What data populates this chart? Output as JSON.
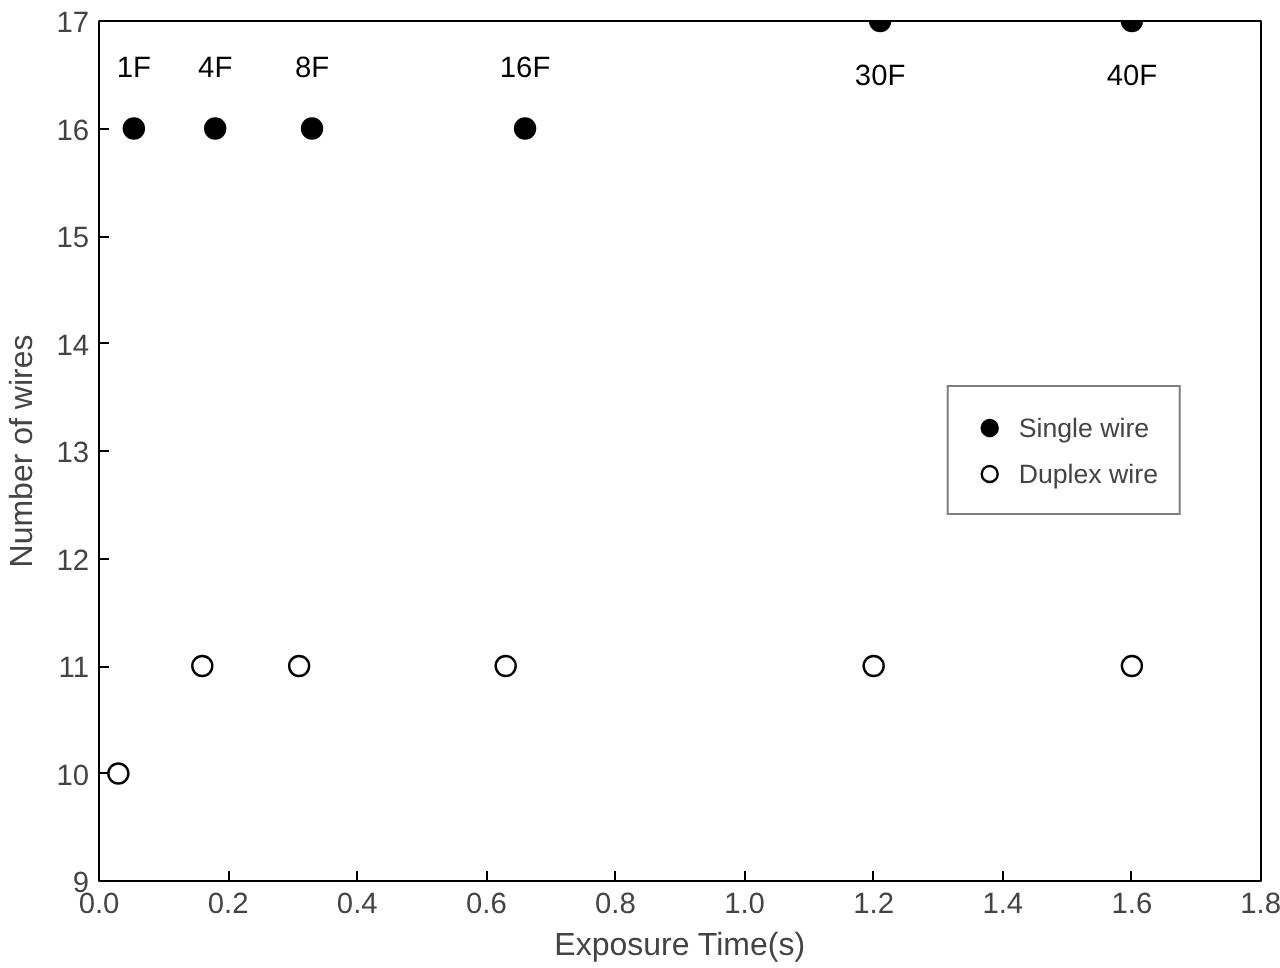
{
  "chart_data": {
    "type": "scatter",
    "xlabel": "Exposure Time(s)",
    "ylabel": "Number of wires",
    "xlim": [
      0,
      1.8
    ],
    "ylim": [
      9,
      17
    ],
    "xticks": [
      {
        "value": 0,
        "label": "0.0"
      },
      0.2,
      0.4,
      0.6,
      0.8,
      {
        "value": 1,
        "label": "1.0"
      },
      1.2,
      1.4,
      1.6,
      1.8
    ],
    "yticks": [
      9,
      10,
      11,
      12,
      13,
      14,
      15,
      16,
      17
    ],
    "grid": false,
    "legend": "center right",
    "marker": "circle",
    "series": [
      {
        "name": "Single wire",
        "color": "#000000",
        "x": [
          0.054,
          0.18,
          0.33,
          0.66,
          1.21,
          1.6
        ],
        "values": [
          16,
          16,
          16,
          16,
          17,
          17
        ]
      },
      {
        "name": "Duplex wire",
        "color": "#ffffff",
        "x": [
          0.03,
          0.16,
          0.31,
          0.63,
          1.2,
          1.6
        ],
        "values": [
          10,
          11,
          11,
          11,
          11,
          11
        ]
      }
    ],
    "annotations": [
      {
        "text": "1F",
        "x": 0.054,
        "y": 16
      },
      {
        "text": "4F",
        "x": 0.18,
        "y": 16
      },
      {
        "text": "8F",
        "x": 0.33,
        "y": 16
      },
      {
        "text": "16F",
        "x": 0.66,
        "y": 16
      },
      {
        "text": "30F",
        "x": 1.21,
        "y": 17
      },
      {
        "text": "40F",
        "x": 1.6,
        "y": 17
      }
    ]
  }
}
